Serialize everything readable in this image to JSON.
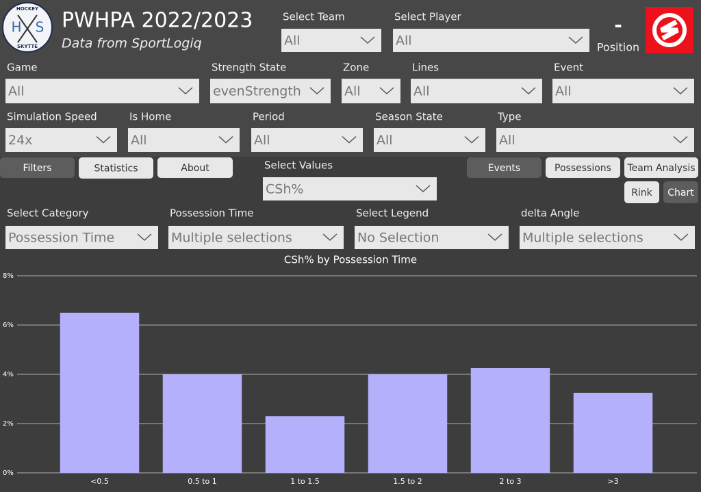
{
  "header": {
    "logo": {
      "top": "HOCKEY",
      "left": "H",
      "right": "S",
      "bottom": "SKYTTE"
    },
    "title": "PWHPA 2022/2023",
    "subtitle": "Data from SportLogiq",
    "position_value": "-",
    "position_label": "Position"
  },
  "filters": [
    {
      "label": "Select Team",
      "value": "All"
    },
    {
      "label": "Select Player",
      "value": "All"
    },
    {
      "label": "Game",
      "value": "All"
    },
    {
      "label": "Strength State",
      "value": "evenStrength"
    },
    {
      "label": "Zone",
      "value": "All"
    },
    {
      "label": "Lines",
      "value": "All"
    },
    {
      "label": "Event",
      "value": "All"
    },
    {
      "label": "Simulation Speed",
      "value": "24x"
    },
    {
      "label": "Is Home",
      "value": "All"
    },
    {
      "label": "Period",
      "value": "All"
    },
    {
      "label": "Season State",
      "value": "All"
    },
    {
      "label": "Type",
      "value": "All"
    },
    {
      "label": "Select Values",
      "value": "CSh%"
    },
    {
      "label": "Select Category",
      "value": "Possession Time"
    },
    {
      "label": "Possession Time",
      "value": "Multiple selections"
    },
    {
      "label": "Select Legend",
      "value": "No Selection"
    },
    {
      "label": "delta Angle",
      "value": "Multiple selections"
    }
  ],
  "tabs": {
    "left": [
      "Filters",
      "Statistics",
      "About"
    ],
    "right": [
      "Events",
      "Possessions",
      "Team Analysis"
    ],
    "view": [
      "Rink",
      "Chart"
    ]
  },
  "chart_data": {
    "type": "bar",
    "title": "CSh% by Possession Time",
    "categories": [
      "<0.5",
      "0.5 to 1",
      "1 to 1.5",
      "1.5 to 2",
      "2 to 3",
      ">3"
    ],
    "values": [
      6.5,
      4.0,
      2.3,
      4.0,
      4.25,
      3.25
    ],
    "color": "#b4b0fc",
    "ylim": [
      0,
      8
    ],
    "yticks": [
      {
        "value": 0,
        "label": "0%"
      },
      {
        "value": 2,
        "label": "2%"
      },
      {
        "value": 4,
        "label": "4%"
      },
      {
        "value": 6,
        "label": "6%"
      },
      {
        "value": 8,
        "label": "8%"
      }
    ],
    "grid": true
  }
}
